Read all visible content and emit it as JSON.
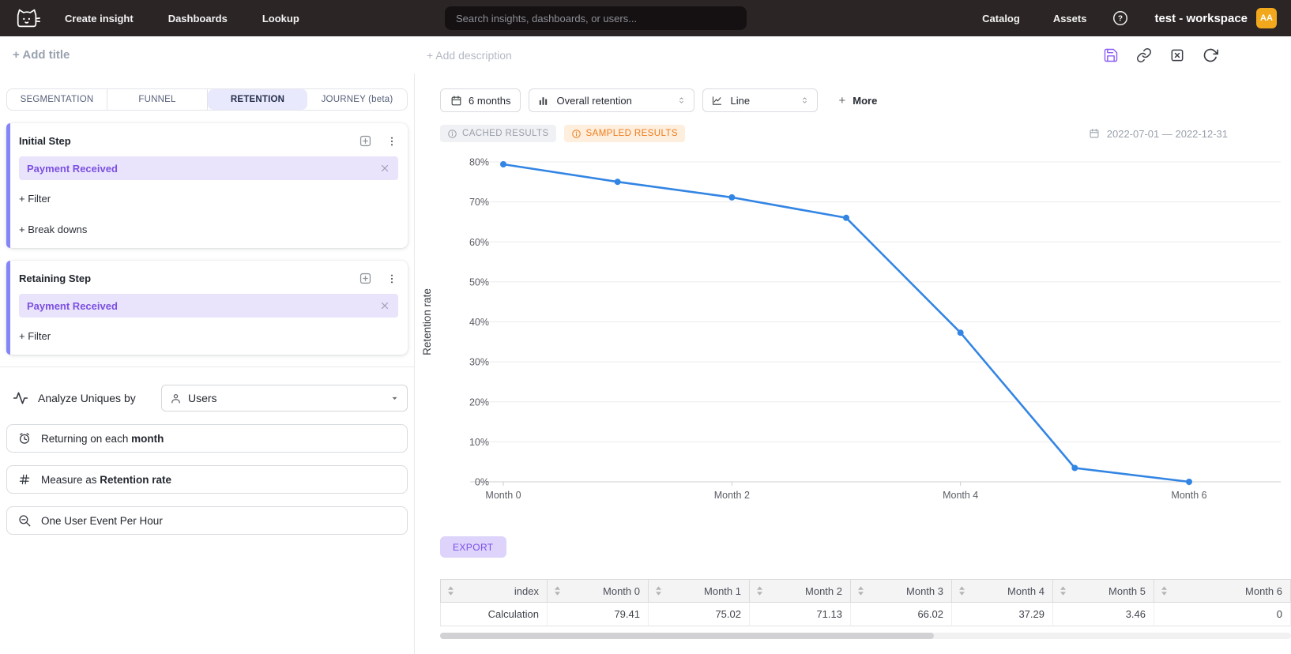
{
  "colors": {
    "topnav_bg": "#2b2526",
    "accent_purple": "#7c4fe3",
    "chip_bg": "#e9e4fb",
    "card_accent_bar": "#8486f8",
    "tab_active_bg": "#e9e9fd",
    "chart_line": "#3385e4",
    "sampled_orange": "#ef7d1a",
    "avatar_bg": "#f2a81d",
    "save_icon_purple": "#8b5cf6",
    "export_bg": "#ddd3fb"
  },
  "topnav": {
    "nav_items": [
      {
        "label": "Create insight"
      },
      {
        "label": "Dashboards"
      },
      {
        "label": "Lookup"
      }
    ],
    "search_placeholder": "Search insights, dashboards, or users...",
    "right_nav_items": [
      {
        "label": "Catalog"
      },
      {
        "label": "Assets"
      }
    ],
    "help_glyph": "?",
    "workspace_name": "test - workspace",
    "avatar_initials": "AA"
  },
  "header": {
    "add_title": "+ Add title",
    "add_description": "+ Add description"
  },
  "builder": {
    "tabs": [
      {
        "label": "SEGMENTATION",
        "active": false
      },
      {
        "label": "FUNNEL",
        "active": false
      },
      {
        "label": "RETENTION",
        "active": true
      },
      {
        "label": "JOURNEY (beta)",
        "active": false
      }
    ],
    "initial_step": {
      "title": "Initial Step",
      "event": "Payment Received",
      "filter": "+ Filter",
      "breakdowns": "+ Break downs"
    },
    "retaining_step": {
      "title": "Retaining Step",
      "event": "Payment Received",
      "filter": "+ Filter"
    },
    "analyze_label": "Analyze Uniques by",
    "analyze_value": "Users",
    "returning_prefix": "Returning on each ",
    "returning_bold": "month",
    "measure_prefix": "Measure as ",
    "measure_bold": "Retention rate",
    "one_event_label": "One User Event Per Hour"
  },
  "controls": {
    "range": "6 months",
    "retention_type": "Overall retention",
    "chart_type": "Line",
    "more_plus": "+",
    "more": "More"
  },
  "status": {
    "cached": "CACHED RESULTS",
    "sampled": "SAMPLED RESULTS",
    "date_range": "2022-07-01 — 2022-12-31"
  },
  "chart_data": {
    "type": "line",
    "title": "",
    "ylabel": "Retention rate",
    "x": [
      "Month 0",
      "Month 1",
      "Month 2",
      "Month 3",
      "Month 4",
      "Month 5",
      "Month 6"
    ],
    "x_tick_labels": [
      "Month 0",
      "Month 2",
      "Month 4",
      "Month 6"
    ],
    "series": [
      {
        "name": "Calculation",
        "values": [
          79.41,
          75.02,
          71.13,
          66.02,
          37.29,
          3.46,
          0
        ]
      }
    ],
    "ylim": [
      0,
      80
    ],
    "ytick_step": 10,
    "ytick_suffix": "%",
    "grid": true,
    "legend": "none",
    "line_color": "#3385e4"
  },
  "export_label": "EXPORT",
  "table": {
    "columns": [
      "index",
      "Month 0",
      "Month 1",
      "Month 2",
      "Month 3",
      "Month 4",
      "Month 5",
      "Month 6"
    ],
    "rows": [
      [
        "Calculation",
        "79.41",
        "75.02",
        "71.13",
        "66.02",
        "37.29",
        "3.46",
        "0"
      ]
    ]
  }
}
